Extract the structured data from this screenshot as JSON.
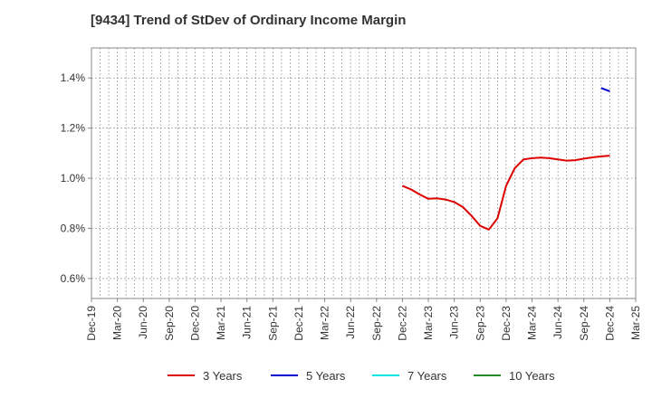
{
  "chart_data": {
    "type": "line",
    "title": "[9434]  Trend of StDev of Ordinary Income Margin",
    "xlabel": "",
    "ylabel": "",
    "x_ticks": [
      "Dec-19",
      "Mar-20",
      "Jun-20",
      "Sep-20",
      "Dec-20",
      "Mar-21",
      "Jun-21",
      "Sep-21",
      "Dec-21",
      "Mar-22",
      "Jun-22",
      "Sep-22",
      "Dec-22",
      "Mar-23",
      "Jun-23",
      "Sep-23",
      "Dec-23",
      "Mar-24",
      "Jun-24",
      "Sep-24",
      "Dec-24",
      "Mar-25"
    ],
    "y_ticks": [
      "0.6%",
      "0.8%",
      "1.0%",
      "1.2%",
      "1.4%"
    ],
    "y_tick_values": [
      0.6,
      0.8,
      1.0,
      1.2,
      1.4
    ],
    "ylim": [
      0.52,
      1.52
    ],
    "y_unit": "%",
    "grid": true,
    "legend_position": "bottom",
    "series": [
      {
        "name": "3 Years",
        "color": "#dd0000",
        "points": [
          [
            "Dec-22",
            0.97
          ],
          [
            "Jan-23",
            0.955
          ],
          [
            "Feb-23",
            0.935
          ],
          [
            "Mar-23",
            0.918
          ],
          [
            "Apr-23",
            0.92
          ],
          [
            "May-23",
            0.915
          ],
          [
            "Jun-23",
            0.905
          ],
          [
            "Jul-23",
            0.885
          ],
          [
            "Aug-23",
            0.85
          ],
          [
            "Sep-23",
            0.81
          ],
          [
            "Oct-23",
            0.795
          ],
          [
            "Nov-23",
            0.84
          ],
          [
            "Dec-23",
            0.97
          ],
          [
            "Jan-24",
            1.04
          ],
          [
            "Feb-24",
            1.075
          ],
          [
            "Mar-24",
            1.08
          ],
          [
            "Apr-24",
            1.082
          ],
          [
            "May-24",
            1.08
          ],
          [
            "Jun-24",
            1.075
          ],
          [
            "Jul-24",
            1.07
          ],
          [
            "Aug-24",
            1.072
          ],
          [
            "Sep-24",
            1.078
          ],
          [
            "Oct-24",
            1.083
          ],
          [
            "Nov-24",
            1.087
          ],
          [
            "Dec-24",
            1.09
          ]
        ]
      },
      {
        "name": "5 Years",
        "color": "#0000cc",
        "points": [
          [
            "Nov-24",
            1.36
          ],
          [
            "Dec-24",
            1.347
          ]
        ]
      },
      {
        "name": "7 Years",
        "color": "#00e5e5",
        "points": []
      },
      {
        "name": "10 Years",
        "color": "#228b22",
        "points": []
      }
    ]
  }
}
